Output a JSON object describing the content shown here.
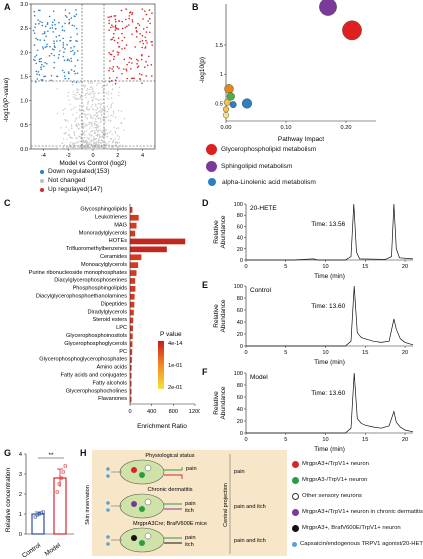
{
  "panels": {
    "A": {
      "letter": "A",
      "ylabel": "-log10(P-value)",
      "xlabel": "Model vs Control (log2)",
      "yticks": [
        "0.0",
        "0.5",
        "1.0",
        "1.5",
        "2.0",
        "2.5",
        "3.0"
      ],
      "xticks": [
        "-4",
        "-2",
        "0",
        "2",
        "4"
      ],
      "legend": [
        {
          "label": "Down regulated(153)",
          "color": "#2e7fbf"
        },
        {
          "label": "Not changed",
          "color": "#bdbdbd"
        },
        {
          "label": "Up regulayed(147)",
          "color": "#d7262b"
        }
      ]
    },
    "B": {
      "letter": "B",
      "ylabel": "-log10(p)",
      "xlabel": "Pathway Impact",
      "xticks": [
        "0.00",
        "0.10",
        "0.20"
      ],
      "yticks": [
        "0.5",
        "1",
        "1.5"
      ],
      "legend": [
        {
          "label": "Glycerophospholipid metabolism",
          "color": "#e02020"
        },
        {
          "label": "Sphingolipid metabolism",
          "color": "#7a3a9a"
        },
        {
          "label": "alpha-Linolenic acid metabolism",
          "color": "#2c7fc0"
        }
      ]
    },
    "C": {
      "letter": "C",
      "xlabel": "Enrichment Ratio",
      "legend_title": "P value",
      "legend_ticks": [
        "4e-14",
        "1e-01",
        "2e-01"
      ],
      "xticks": [
        "0",
        "400",
        "800",
        "1200"
      ]
    },
    "D": {
      "letter": "D",
      "title": "20-HETE",
      "time_label": "Time: 13.56",
      "ylabel": "Relative Abundance",
      "xlabel": "Time (min)",
      "yticks": [
        "0",
        "20",
        "40",
        "60",
        "80",
        "100"
      ],
      "xticks": [
        "0",
        "5",
        "10",
        "15",
        "20"
      ]
    },
    "E": {
      "letter": "E",
      "title": "Control",
      "time_label": "Time: 13.60",
      "ylabel": "Relative Abundance",
      "xlabel": "Time (min)",
      "yticks": [
        "0",
        "20",
        "40",
        "60",
        "80",
        "100"
      ],
      "xticks": [
        "0",
        "5",
        "10",
        "15",
        "20"
      ]
    },
    "F": {
      "letter": "F",
      "title": "Model",
      "time_label": "Time: 13.60",
      "ylabel": "Relative Abundance",
      "xlabel": "Time (min)",
      "yticks": [
        "0",
        "20",
        "40",
        "60",
        "80",
        "100"
      ],
      "xticks": [
        "0",
        "5",
        "10",
        "15",
        "20"
      ]
    },
    "G": {
      "letter": "G",
      "ylabel": "Relative concentration",
      "significance": "**",
      "yticks": [
        "0",
        "1",
        "2",
        "3",
        "4"
      ],
      "categories": [
        "Control",
        "Model"
      ]
    },
    "H": {
      "letter": "H",
      "side_left": "Skin innervation",
      "side_right": "Central projection",
      "row1_title": "Physiological status",
      "row2_title": "Chronic dermatitis",
      "row3_title": "MrgprA3Cre; BrafV600E mice",
      "row1_outputs": [
        "pain",
        "pain"
      ],
      "row2_outputs": [
        "pain",
        "itch",
        "pain and itch"
      ],
      "row3_outputs": [
        "pain",
        "itch",
        "pain and itch"
      ],
      "legend": [
        {
          "label": "MrgprA3+/TrpV1+ neuron",
          "color": "#d7262b",
          "ring": false
        },
        {
          "label": "MrgprA3-/TrpV1+ neuron",
          "color": "#2e9a45",
          "ring": false
        },
        {
          "label": "Other sensory neurons",
          "color": "#ffffff",
          "ring": true
        },
        {
          "label": "MrgprA3+/TrpV1+ neuron in chronic dermatitis",
          "color": "#7a3a9a",
          "ring": false
        },
        {
          "label": "MrgprA3+, BrafV600E/TrpV1+ neuron",
          "color": "#111111",
          "ring": false
        },
        {
          "label": "Capsaicin/endogenous TRPV1 agonist/20-HETE",
          "color": "#5aa0d8",
          "ring": false
        }
      ]
    }
  },
  "chart_data": [
    {
      "type": "scatter",
      "panel": "A",
      "xlabel": "Model vs Control (log2)",
      "ylabel": "-log10(P-value)",
      "xlim": [
        -5,
        5
      ],
      "ylim": [
        0,
        3
      ],
      "series": [
        {
          "name": "Down regulated(153)",
          "count": 153
        },
        {
          "name": "Not changed"
        },
        {
          "name": "Up regulayed(147)",
          "count": 147
        }
      ]
    },
    {
      "type": "scatter",
      "panel": "B",
      "xlabel": "Pathway Impact",
      "ylabel": "-log10(p)",
      "xlim": [
        0,
        0.25
      ],
      "ylim": [
        0.2,
        2.2
      ],
      "points": [
        {
          "x": 0.21,
          "y": 1.75,
          "name": "Glycerophospholipid metabolism",
          "color": "#e02020",
          "r": 3
        },
        {
          "x": 0.17,
          "y": 2.15,
          "name": "Sphingolipid metabolism",
          "color": "#7a3a9a",
          "r": 2.7
        },
        {
          "x": 0.035,
          "y": 0.5,
          "name": "alpha-Linolenic acid metabolism",
          "color": "#2c7fc0",
          "r": 1.5
        },
        {
          "x": 0.005,
          "y": 0.75,
          "color": "#e0891a",
          "r": 1.4
        },
        {
          "x": 0.008,
          "y": 0.62,
          "color": "#4caf50",
          "r": 1.2
        },
        {
          "x": 0.002,
          "y": 0.52,
          "color": "#f2c14e",
          "r": 1.0
        },
        {
          "x": 0.012,
          "y": 0.48,
          "color": "#2c7fc0",
          "r": 1.0
        },
        {
          "x": 0.0,
          "y": 0.4,
          "color": "#f2c14e",
          "r": 0.9
        },
        {
          "x": 0.0,
          "y": 0.3,
          "color": "#f8e38a",
          "r": 0.9
        }
      ]
    },
    {
      "type": "bar",
      "panel": "C",
      "orientation": "horizontal",
      "xlabel": "Enrichment Ratio",
      "xlim": [
        0,
        1200
      ],
      "categories": [
        "Glycosphingolipids",
        "Leukotrienes",
        "MAG",
        "Monoradylglycerols",
        "HOTEs",
        "Trifluoromethylbenzenes",
        "Ceramides",
        "Monoacylglycerols",
        "Purine ribonucleoside monophosphates",
        "Diacylglycerophosphoserines",
        "Phosphosphingolipids",
        "Diacylglycerophosphoethanolamines",
        "Dipeptides",
        "Diradylglycerols",
        "Steroid esters",
        "LPC",
        "Glycerophosphoinositols",
        "Glycerophosphoglycerols",
        "PC",
        "Glycerophosphoglycerophosphates",
        "Amino acids",
        "Fatty acids and conjugates",
        "Fatty alcohols",
        "Glycerophosphocholines",
        "Flavanones"
      ],
      "values": [
        45,
        160,
        120,
        95,
        1020,
        680,
        210,
        150,
        120,
        95,
        100,
        85,
        80,
        70,
        60,
        55,
        50,
        45,
        40,
        35,
        30,
        28,
        26,
        24,
        20
      ],
      "colors": [
        "#d43a22",
        "#d43a22",
        "#d43a22",
        "#d43a22",
        "#c1271f",
        "#c1271f",
        "#d43a22",
        "#d43a22",
        "#d43a22",
        "#d43a22",
        "#d43a22",
        "#d43a22",
        "#d43a22",
        "#d43a22",
        "#d43a22",
        "#d43a22",
        "#d43a22",
        "#d43a22",
        "#d43a22",
        "#d43a22",
        "#d43a22",
        "#d43a22",
        "#d43a22",
        "#d43a22",
        "#d43a22"
      ]
    },
    {
      "type": "line",
      "panel": "D",
      "xlabel": "Time (min)",
      "ylabel": "Relative Abundance",
      "xlim": [
        0,
        21
      ],
      "ylim": [
        0,
        100
      ],
      "x": [
        0,
        6,
        8.5,
        9,
        12.5,
        13.2,
        13.56,
        13.9,
        14.3,
        17.5,
        18.3,
        18.6,
        18.9,
        19.3,
        21
      ],
      "values": [
        0,
        0,
        2,
        0,
        0,
        6,
        100,
        14,
        2,
        1,
        6,
        100,
        20,
        4,
        2
      ]
    },
    {
      "type": "line",
      "panel": "E",
      "xlabel": "Time (min)",
      "ylabel": "Relative Abundance",
      "xlim": [
        0,
        21
      ],
      "ylim": [
        0,
        100
      ],
      "x": [
        0,
        12.5,
        13.2,
        13.6,
        14.0,
        14.5,
        15,
        16,
        17,
        18,
        18.6,
        18.9,
        19.4,
        20,
        21
      ],
      "values": [
        0,
        0,
        8,
        100,
        22,
        14,
        12,
        8,
        6,
        8,
        45,
        28,
        12,
        6,
        2
      ]
    },
    {
      "type": "line",
      "panel": "F",
      "xlabel": "Time (min)",
      "ylabel": "Relative Abundance",
      "xlim": [
        0,
        21
      ],
      "ylim": [
        0,
        100
      ],
      "x": [
        0,
        12.5,
        13.2,
        13.6,
        14.0,
        14.5,
        15,
        16,
        17,
        18,
        18.6,
        18.9,
        19.4,
        20,
        21
      ],
      "values": [
        0,
        0,
        8,
        100,
        24,
        16,
        13,
        10,
        8,
        12,
        36,
        18,
        10,
        5,
        2
      ]
    },
    {
      "type": "bar",
      "panel": "G",
      "ylabel": "Relative concentration",
      "categories": [
        "Control",
        "Model"
      ],
      "values": [
        1.0,
        2.8
      ],
      "errors": [
        0.1,
        0.45
      ],
      "ylim": [
        0,
        4
      ],
      "colors": [
        "#2e4fa0",
        "#d7262b"
      ],
      "points": [
        [
          0.85,
          0.95,
          1.0,
          1.05,
          1.1
        ],
        [
          2.1,
          2.5,
          2.8,
          3.1,
          3.4
        ]
      ]
    }
  ]
}
